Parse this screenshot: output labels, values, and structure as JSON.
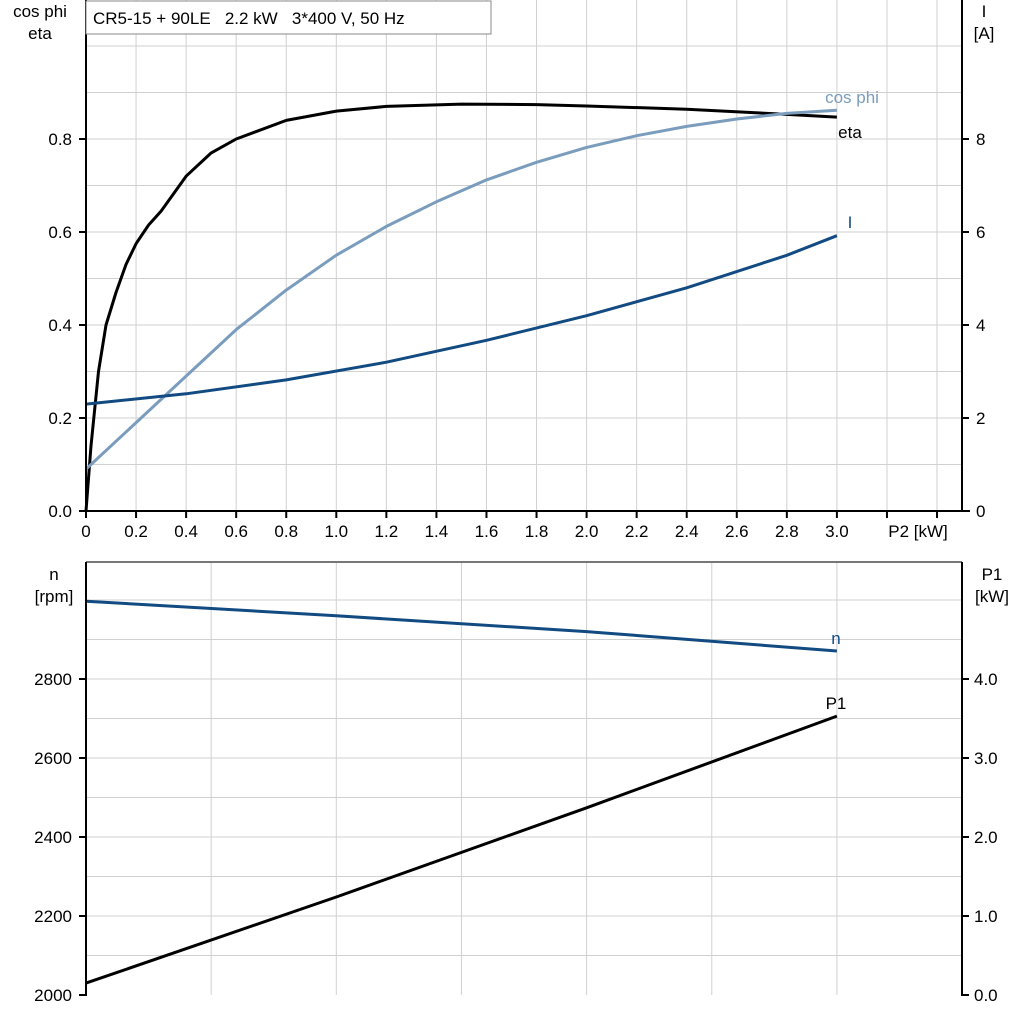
{
  "chart_data": [
    {
      "type": "line",
      "title": "CR5-15 + 90LE   2.2 kW   3*400 V, 50 Hz",
      "xlabel": "P2 [kW]",
      "ylabel_left": [
        "cos phi",
        "eta"
      ],
      "ylabel_right": [
        "I",
        "[A]"
      ],
      "xlim": [
        0,
        3.5
      ],
      "ylim_left": [
        0,
        1.1
      ],
      "ylim_right": [
        0,
        11
      ],
      "x_ticks": [
        "0",
        "0.2",
        "0.4",
        "0.6",
        "0.8",
        "1.0",
        "1.2",
        "1.4",
        "1.6",
        "1.8",
        "2.0",
        "2.2",
        "2.4",
        "2.6",
        "2.8",
        "3.0"
      ],
      "y_ticks_left": [
        "0.0",
        "0.2",
        "0.4",
        "0.6",
        "0.8"
      ],
      "y_ticks_right": [
        "0",
        "2",
        "4",
        "6",
        "8"
      ],
      "grid": true,
      "series": [
        {
          "name": "eta",
          "axis": "left",
          "color": "#000000",
          "x": [
            0,
            0.02,
            0.05,
            0.08,
            0.12,
            0.16,
            0.2,
            0.25,
            0.3,
            0.4,
            0.5,
            0.6,
            0.8,
            1.0,
            1.2,
            1.5,
            1.8,
            2.0,
            2.4,
            2.8,
            3.0
          ],
          "y": [
            0,
            0.14,
            0.3,
            0.4,
            0.47,
            0.53,
            0.575,
            0.615,
            0.645,
            0.72,
            0.77,
            0.8,
            0.84,
            0.86,
            0.87,
            0.875,
            0.874,
            0.871,
            0.864,
            0.853,
            0.847
          ]
        },
        {
          "name": "cos phi",
          "axis": "left",
          "color": "#7a9cbd",
          "x": [
            0,
            0.2,
            0.4,
            0.6,
            0.8,
            1.0,
            1.2,
            1.4,
            1.6,
            1.8,
            2.0,
            2.2,
            2.4,
            2.6,
            2.8,
            3.0
          ],
          "y": [
            0.09,
            0.19,
            0.29,
            0.39,
            0.475,
            0.55,
            0.612,
            0.665,
            0.712,
            0.75,
            0.782,
            0.807,
            0.827,
            0.843,
            0.855,
            0.862
          ]
        },
        {
          "name": "I",
          "axis": "right",
          "color": "#124a82",
          "x": [
            0,
            0.4,
            0.8,
            1.2,
            1.6,
            2.0,
            2.4,
            2.8,
            3.0
          ],
          "y": [
            2.3,
            2.52,
            2.82,
            3.2,
            3.67,
            4.2,
            4.8,
            5.5,
            5.92
          ]
        }
      ]
    },
    {
      "type": "line",
      "xlim": [
        0,
        3.5
      ],
      "ylabel_left": [
        "n",
        "[rpm]"
      ],
      "ylabel_right": [
        "P1",
        "[kW]"
      ],
      "ylim_left": [
        2000,
        3100
      ],
      "ylim_right": [
        0,
        5.5
      ],
      "y_ticks_left": [
        "2000",
        "2200",
        "2400",
        "2600",
        "2800"
      ],
      "y_ticks_right": [
        "0.0",
        "1.0",
        "2.0",
        "3.0",
        "4.0"
      ],
      "grid": true,
      "series": [
        {
          "name": "n",
          "axis": "left",
          "color": "#124a82",
          "x": [
            0,
            1.0,
            2.0,
            3.0
          ],
          "y": [
            2997,
            2960,
            2920,
            2871
          ]
        },
        {
          "name": "P1",
          "axis": "right",
          "color": "#000000",
          "x": [
            0,
            1.0,
            2.0,
            3.0
          ],
          "y": [
            0.15,
            1.24,
            2.37,
            3.53
          ]
        }
      ]
    }
  ]
}
